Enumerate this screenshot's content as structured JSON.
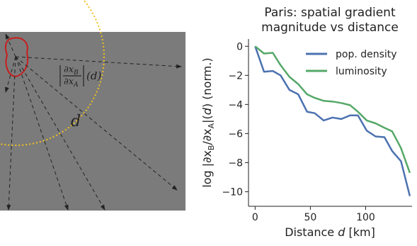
{
  "diagram": {
    "gradient_label": {
      "numerator": [
        "∂x",
        "B"
      ],
      "denominator": [
        "∂x",
        "A"
      ],
      "suffix": "(d)"
    },
    "distance_label": "d"
  },
  "chart_data": {
    "type": "line",
    "title": [
      "Paris: spatial gradient",
      "magnitude vs distance"
    ],
    "xlabel": [
      "Distance ",
      "d",
      " [km]"
    ],
    "ylabel": [
      "log |∂x",
      "B",
      "/∂x",
      "A",
      "|(",
      "d",
      ") (norm.)"
    ],
    "x": [
      0,
      8,
      16,
      23,
      31,
      39,
      47,
      54,
      62,
      70,
      78,
      86,
      93,
      101,
      109,
      117,
      124,
      132,
      140
    ],
    "series": [
      {
        "name": "pop. density",
        "color": "#4c72b0",
        "values": [
          0,
          -1.75,
          -1.7,
          -2.0,
          -3.0,
          -3.3,
          -4.5,
          -4.6,
          -5.1,
          -4.9,
          -5.0,
          -4.75,
          -4.75,
          -5.8,
          -6.2,
          -6.25,
          -7.2,
          -7.9,
          -10.3
        ]
      },
      {
        "name": "luminosity",
        "color": "#55a868",
        "values": [
          0,
          -0.5,
          -0.45,
          -1.3,
          -2.1,
          -2.6,
          -3.3,
          -3.55,
          -3.75,
          -3.8,
          -3.9,
          -4.05,
          -4.5,
          -5.1,
          -5.3,
          -5.6,
          -5.85,
          -7.0,
          -8.7
        ]
      }
    ],
    "xlim": [
      -6,
      142
    ],
    "ylim": [
      -11,
      0.5
    ],
    "xticks": [
      0,
      50,
      100
    ],
    "yticks": [
      {
        "value": 0,
        "label": "0"
      },
      {
        "value": -2,
        "label": "−2"
      },
      {
        "value": -4,
        "label": "−4"
      },
      {
        "value": -6,
        "label": "−6"
      },
      {
        "value": -8,
        "label": "−8"
      },
      {
        "value": -10,
        "label": "−10"
      }
    ],
    "legend": "upper right"
  }
}
